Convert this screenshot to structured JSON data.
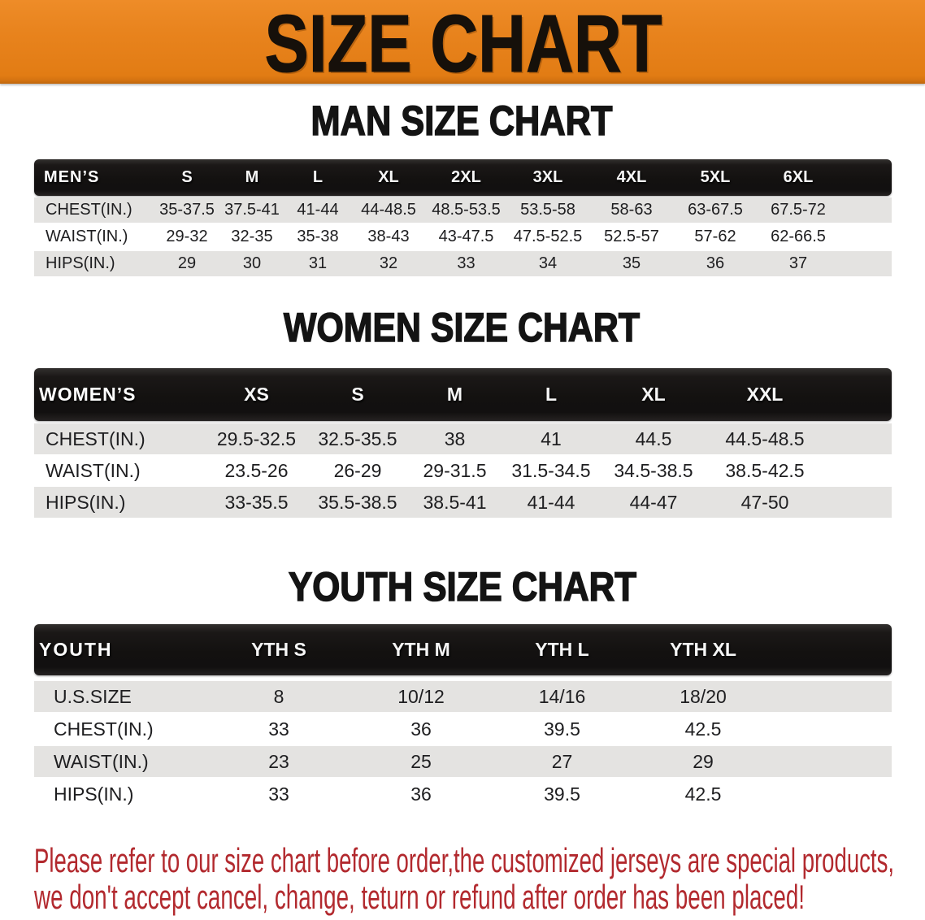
{
  "colors": {
    "banner_orange": "#E8831D",
    "band_black": "#131110",
    "row_gray": "#E4E3E1",
    "disclaimer_red": "#B2292E",
    "heading_black": "#141414",
    "header_text_white": "#FFFFFF",
    "cell_text": "#1E1E20"
  },
  "banner": {
    "title": "SIZE CHART"
  },
  "sections": [
    {
      "heading": "MAN SIZE CHART",
      "table": {
        "label": "MEN’S",
        "columns": [
          "S",
          "M",
          "L",
          "XL",
          "2XL",
          "3XL",
          "4XL",
          "5XL",
          "6XL"
        ],
        "rows": [
          {
            "label": "CHEST(IN.)",
            "values": [
              "35-37.5",
              "37.5-41",
              "41-44",
              "44-48.5",
              "48.5-53.5",
              "53.5-58",
              "58-63",
              "63-67.5",
              "67.5-72"
            ]
          },
          {
            "label": "WAIST(IN.)",
            "values": [
              "29-32",
              "32-35",
              "35-38",
              "38-43",
              "43-47.5",
              "47.5-52.5",
              "52.5-57",
              "57-62",
              "62-66.5"
            ]
          },
          {
            "label": "HIPS(IN.)",
            "values": [
              "29",
              "30",
              "31",
              "32",
              "33",
              "34",
              "35",
              "36",
              "37"
            ]
          }
        ]
      }
    },
    {
      "heading": "WOMEN SIZE CHART",
      "table": {
        "label": "WOMEN’S",
        "columns": [
          "XS",
          "S",
          "M",
          "L",
          "XL",
          "XXL"
        ],
        "rows": [
          {
            "label": "CHEST(IN.)",
            "values": [
              "29.5-32.5",
              "32.5-35.5",
              "38",
              "41",
              "44.5",
              "44.5-48.5"
            ]
          },
          {
            "label": "WAIST(IN.)",
            "values": [
              "23.5-26",
              "26-29",
              "29-31.5",
              "31.5-34.5",
              "34.5-38.5",
              "38.5-42.5"
            ]
          },
          {
            "label": "HIPS(IN.)",
            "values": [
              "33-35.5",
              "35.5-38.5",
              "38.5-41",
              "41-44",
              "44-47",
              "47-50"
            ]
          }
        ]
      }
    },
    {
      "heading": "YOUTH SIZE CHART",
      "table": {
        "label": "YOUTH",
        "columns": [
          "YTH S",
          "YTH M",
          "YTH L",
          "YTH XL"
        ],
        "rows": [
          {
            "label": "U.S.SIZE",
            "values": [
              "8",
              "10/12",
              "14/16",
              "18/20"
            ]
          },
          {
            "label": "CHEST(IN.)",
            "values": [
              "33",
              "36",
              "39.5",
              "42.5"
            ]
          },
          {
            "label": "WAIST(IN.)",
            "values": [
              "23",
              "25",
              "27",
              "29"
            ]
          },
          {
            "label": "HIPS(IN.)",
            "values": [
              "33",
              "36",
              "39.5",
              "42.5"
            ]
          }
        ]
      }
    }
  ],
  "footer": {
    "line1": "Please refer to our size chart before order,the customized jerseys are special products,",
    "line2": "we don't accept cancel, change, teturn or refund after order has been placed!"
  }
}
